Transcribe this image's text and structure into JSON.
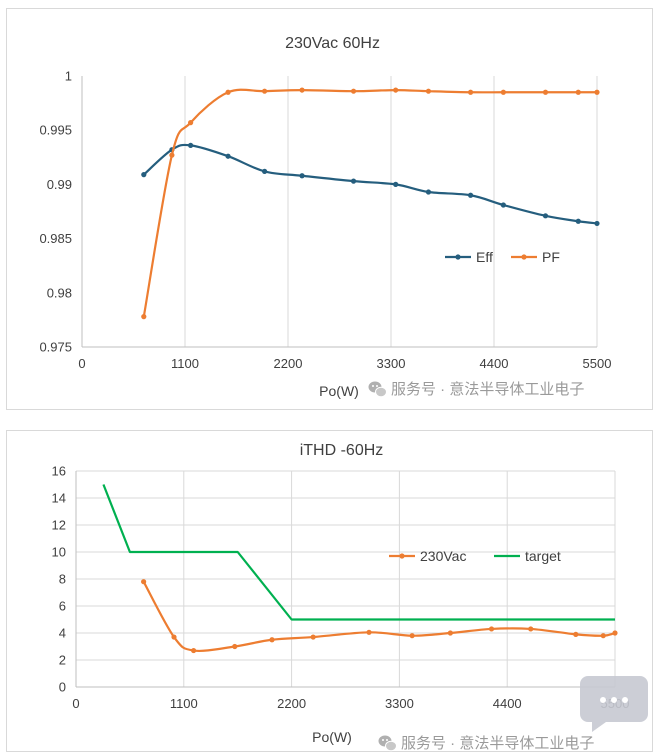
{
  "chart_data": [
    {
      "type": "line",
      "title": "230Vac  60Hz",
      "xlabel": "Po(W)",
      "ylabel": "",
      "xlim": [
        0,
        5500
      ],
      "ylim": [
        0.975,
        1
      ],
      "x_ticks": [
        0,
        1100,
        2200,
        3300,
        4400,
        5500
      ],
      "x_tick_labels": [
        "0",
        "1100",
        "2200",
        "3300",
        "4400",
        "5500"
      ],
      "y_ticks": [
        0.975,
        0.98,
        0.985,
        0.99,
        0.995,
        1
      ],
      "y_tick_labels": [
        "0.975",
        "0.98",
        "0.985",
        "0.99",
        "0.995",
        "1"
      ],
      "grid": "vertical",
      "legend": "right",
      "series": [
        {
          "name": "Eff",
          "color": "#255e7e",
          "marker": true,
          "x": [
            660,
            960,
            1160,
            1560,
            1950,
            2350,
            2900,
            3350,
            3700,
            4150,
            4500,
            4950,
            5300,
            5500
          ],
          "y": [
            0.9909,
            0.9932,
            0.9936,
            0.9926,
            0.9912,
            0.9908,
            0.9903,
            0.99,
            0.9893,
            0.989,
            0.9881,
            0.9871,
            0.9866,
            0.9864
          ]
        },
        {
          "name": "PF",
          "color": "#ed7d31",
          "marker": true,
          "x": [
            660,
            960,
            1160,
            1560,
            1950,
            2350,
            2900,
            3350,
            3700,
            4150,
            4500,
            4950,
            5300,
            5500
          ],
          "y": [
            0.9778,
            0.9927,
            0.9957,
            0.9985,
            0.9986,
            0.9987,
            0.9986,
            0.9987,
            0.9986,
            0.9985,
            0.9985,
            0.9985,
            0.9985,
            0.9985
          ]
        }
      ]
    },
    {
      "type": "line",
      "title": "iTHD -60Hz",
      "xlabel": "Po(W)",
      "ylabel": "",
      "xlim": [
        0,
        5500
      ],
      "ylim": [
        0,
        16
      ],
      "x_ticks": [
        0,
        1100,
        2200,
        3300,
        4400,
        5500
      ],
      "x_tick_labels": [
        "0",
        "1100",
        "2200",
        "3300",
        "4400",
        "5500"
      ],
      "y_ticks": [
        0,
        2,
        4,
        6,
        8,
        10,
        12,
        14,
        16
      ],
      "y_tick_labels": [
        "0",
        "2",
        "4",
        "6",
        "8",
        "10",
        "12",
        "14",
        "16"
      ],
      "grid": "both",
      "legend": "top-right",
      "series": [
        {
          "name": "230Vac",
          "color": "#ed7d31",
          "marker": true,
          "x": [
            690,
            1000,
            1200,
            1620,
            2000,
            2420,
            2990,
            3430,
            3820,
            4240,
            4640,
            5100,
            5380,
            5500
          ],
          "y": [
            7.8,
            3.7,
            2.7,
            3.0,
            3.5,
            3.7,
            4.05,
            3.8,
            4.0,
            4.3,
            4.3,
            3.9,
            3.8,
            4.0
          ]
        },
        {
          "name": "target",
          "color": "#00b050",
          "marker": false,
          "x": [
            280,
            550,
            1650,
            2200,
            5500
          ],
          "y": [
            15,
            10,
            10,
            5,
            5
          ]
        }
      ]
    }
  ],
  "watermarks": [
    {
      "text": "服务号 · 意法半导体工业电子"
    },
    {
      "text": "服务号 · 意法半导体工业电子"
    }
  ]
}
